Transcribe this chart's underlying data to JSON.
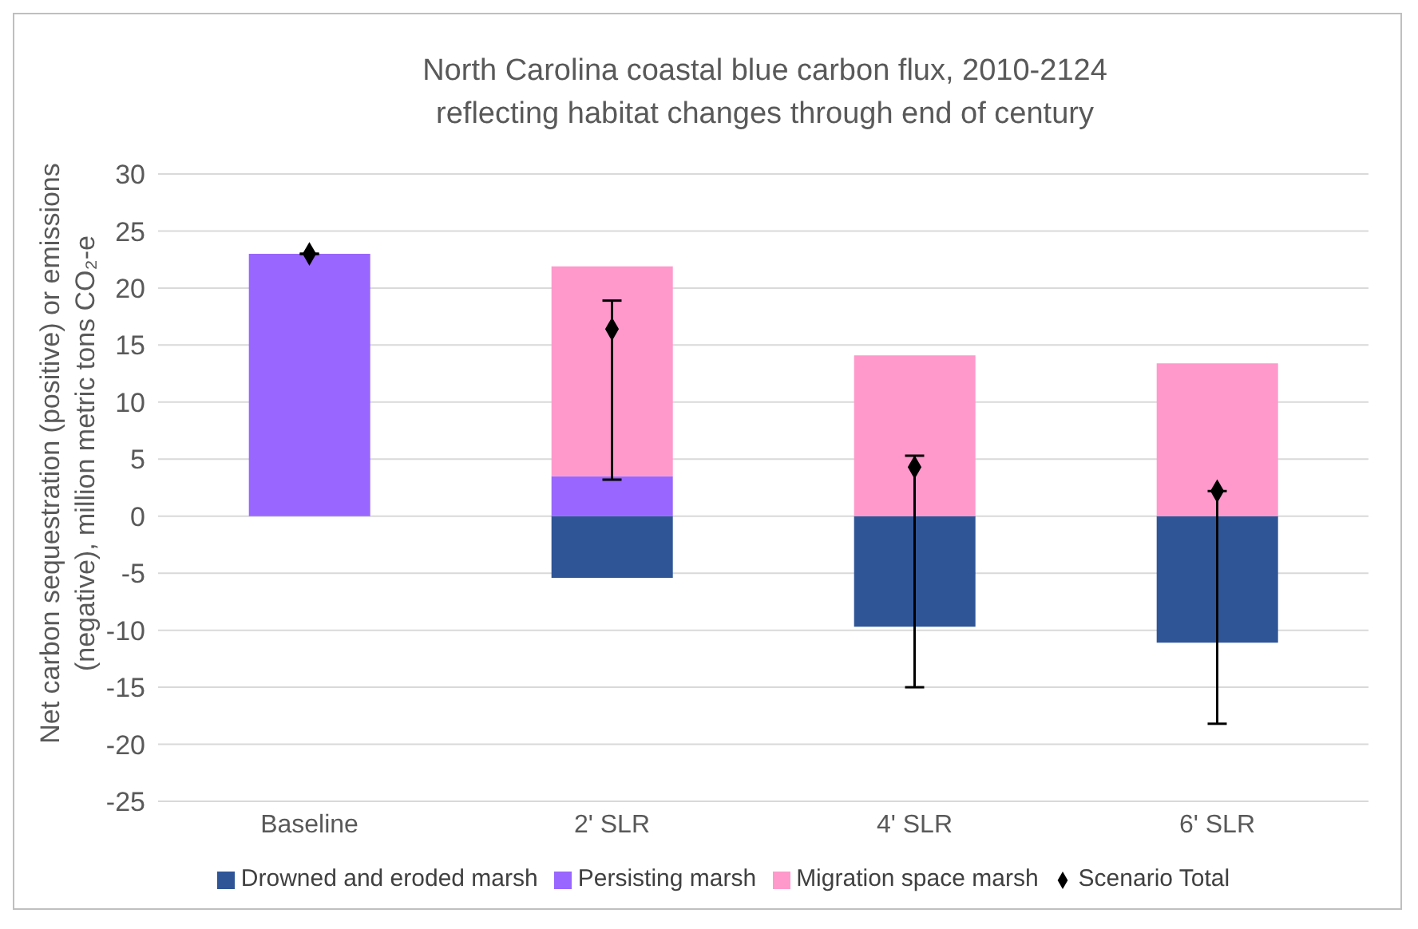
{
  "chart_data": {
    "type": "bar",
    "stacked": true,
    "title": "North Carolina coastal blue carbon flux, 2010-2124\nreflecting habitat changes through end of century",
    "ylabel": "Net carbon sequestration (positive) or emissions (negative), million metric tons CO₂-e",
    "categories": [
      "Baseline",
      "2' SLR",
      "4' SLR",
      "6' SLR"
    ],
    "ylim": [
      -25,
      30
    ],
    "yticks": [
      -25,
      -20,
      -15,
      -10,
      -5,
      0,
      5,
      10,
      15,
      20,
      25,
      30
    ],
    "grid": "y",
    "legend": "bottom",
    "series": [
      {
        "name": "Drowned and eroded marsh",
        "color": "#2f5597",
        "values": [
          null,
          -5.4,
          -9.7,
          -11.1
        ]
      },
      {
        "name": "Persisting marsh",
        "color": "#9966ff",
        "values": [
          23,
          3.5,
          null,
          null
        ]
      },
      {
        "name": "Migration space marsh",
        "color": "#ff99cc",
        "values": [
          null,
          18.4,
          14.1,
          13.4
        ]
      },
      {
        "name": "Scenario Total",
        "type": "scatter",
        "color": "#000000",
        "marker": "diamond",
        "values": [
          23,
          16.4,
          4.3,
          2.2
        ],
        "errors": [
          null,
          [
            3.2,
            18.9
          ],
          [
            -15,
            5.3
          ],
          [
            -18.2,
            2.2
          ]
        ]
      }
    ]
  }
}
